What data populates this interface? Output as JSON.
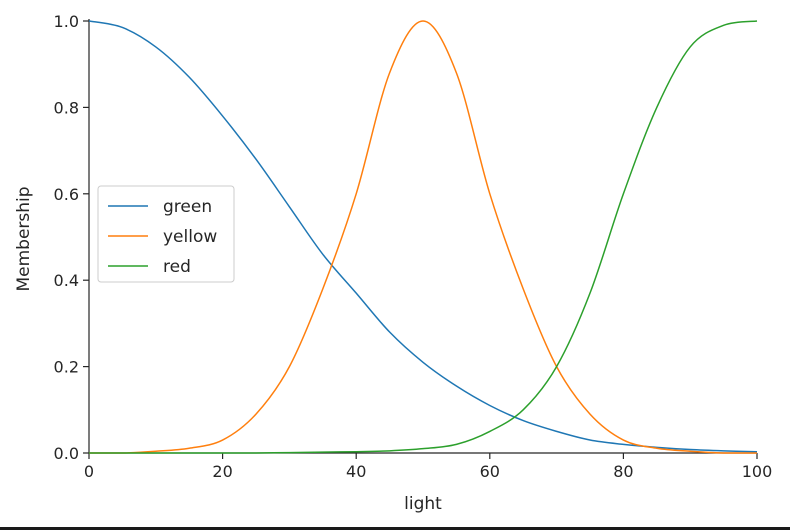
{
  "chart_data": {
    "type": "line",
    "xlabel": "light",
    "ylabel": "Membership",
    "xlim": [
      0,
      100
    ],
    "ylim": [
      0,
      1.0
    ],
    "x_ticks": [
      "0",
      "20",
      "40",
      "60",
      "80",
      "100"
    ],
    "y_ticks": [
      "0.0",
      "0.2",
      "0.4",
      "0.6",
      "0.8",
      "1.0"
    ],
    "grid": false,
    "legend_position": "center-left",
    "x": [
      0,
      5,
      10,
      15,
      20,
      25,
      30,
      35,
      40,
      45,
      50,
      55,
      60,
      65,
      70,
      75,
      80,
      85,
      90,
      95,
      100
    ],
    "series": [
      {
        "name": "green",
        "color": "#1f77b4",
        "values": [
          1.0,
          0.985,
          0.94,
          0.87,
          0.78,
          0.68,
          0.57,
          0.46,
          0.37,
          0.28,
          0.21,
          0.155,
          0.11,
          0.075,
          0.05,
          0.03,
          0.02,
          0.013,
          0.008,
          0.005,
          0.003
        ]
      },
      {
        "name": "yellow",
        "color": "#ff7f0e",
        "values": [
          0.0,
          0.0,
          0.004,
          0.011,
          0.03,
          0.09,
          0.2,
          0.38,
          0.6,
          0.88,
          1.0,
          0.88,
          0.6,
          0.38,
          0.2,
          0.09,
          0.03,
          0.011,
          0.004,
          0.0,
          0.0
        ]
      },
      {
        "name": "red",
        "color": "#2ca02c",
        "values": [
          0.0,
          0.0,
          0.0,
          0.0,
          0.0,
          0.0,
          0.001,
          0.002,
          0.003,
          0.005,
          0.01,
          0.02,
          0.05,
          0.1,
          0.2,
          0.37,
          0.6,
          0.8,
          0.94,
          0.99,
          1.0
        ]
      }
    ]
  }
}
